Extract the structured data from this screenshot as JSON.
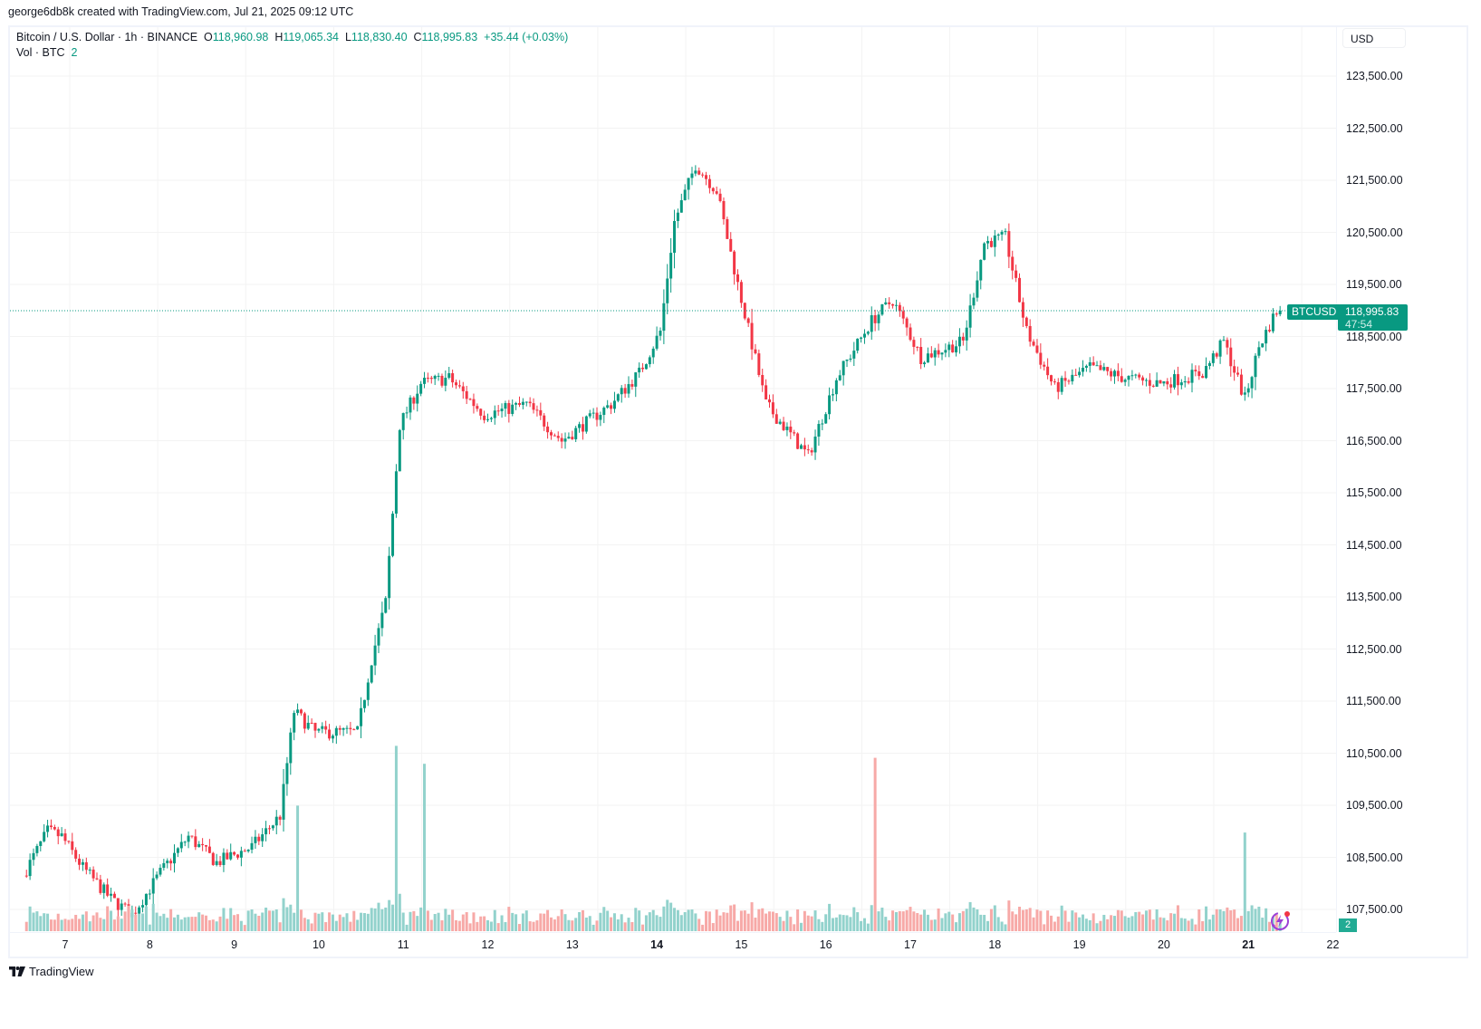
{
  "credit": "george6db8k created with TradingView.com, Jul 21, 2025 09:12 UTC",
  "legend": {
    "symbol_desc": "Bitcoin / U.S. Dollar · 1h · BINANCE",
    "o_label": "O",
    "o_value": "118,960.98",
    "h_label": "H",
    "h_value": "119,065.34",
    "l_label": "L",
    "l_value": "118,830.40",
    "c_label": "C",
    "c_value": "118,995.83",
    "change": "+35.44 (+0.03%)",
    "vol_label": "Vol · BTC",
    "vol_value": "2"
  },
  "price_axis": {
    "currency_button": "USD",
    "ticks": [
      "123,500.00",
      "122,500.00",
      "121,500.00",
      "120,500.00",
      "119,500.00",
      "118,500.00",
      "117,500.00",
      "116,500.00",
      "115,500.00",
      "114,500.00",
      "113,500.00",
      "112,500.00",
      "111,500.00",
      "110,500.00",
      "109,500.00",
      "108,500.00",
      "107,500.00"
    ],
    "symbol_tag": "BTCUSD",
    "last_price": "118,995.83",
    "countdown": "47:54",
    "volume_tag": "2"
  },
  "time_axis": {
    "ticks": [
      {
        "label": "7",
        "bold": false
      },
      {
        "label": "8",
        "bold": false
      },
      {
        "label": "9",
        "bold": false
      },
      {
        "label": "10",
        "bold": false
      },
      {
        "label": "11",
        "bold": false
      },
      {
        "label": "12",
        "bold": false
      },
      {
        "label": "13",
        "bold": false
      },
      {
        "label": "14",
        "bold": true
      },
      {
        "label": "15",
        "bold": false
      },
      {
        "label": "16",
        "bold": false
      },
      {
        "label": "17",
        "bold": false
      },
      {
        "label": "18",
        "bold": false
      },
      {
        "label": "19",
        "bold": false
      },
      {
        "label": "20",
        "bold": false
      },
      {
        "label": "21",
        "bold": true
      },
      {
        "label": "22",
        "bold": false
      }
    ]
  },
  "branding": {
    "logo_text": "TradingView"
  },
  "colors": {
    "up": "#089981",
    "down": "#f23645",
    "vol_up": "#92d2cc",
    "vol_down": "#f7a9a7",
    "grid": "#f3f3f3",
    "last_price_line": "#089981"
  },
  "chart_data": {
    "type": "candlestick",
    "title": "Bitcoin / U.S. Dollar · 1h · BINANCE",
    "xlabel": "",
    "ylabel": "USD",
    "x_ticks": [
      "7",
      "8",
      "9",
      "10",
      "11",
      "12",
      "13",
      "14",
      "15",
      "16",
      "17",
      "18",
      "19",
      "20",
      "21",
      "22"
    ],
    "ylim": [
      107000,
      124000
    ],
    "y_ticks": [
      107500,
      108500,
      109500,
      110500,
      111500,
      112500,
      113500,
      114500,
      115500,
      116500,
      117500,
      118500,
      119500,
      120500,
      121500,
      122500,
      123500
    ],
    "last": {
      "open": 118960.98,
      "high": 119065.34,
      "low": 118830.4,
      "close": 118995.83,
      "change": 35.44,
      "change_pct": 0.03,
      "volume": 2
    },
    "price_path_hourly_waypoints": [
      {
        "t": "Jul 6 13:00",
        "price": 108150
      },
      {
        "t": "Jul 6 20:00",
        "price": 109000
      },
      {
        "t": "Jul 7 00:00",
        "price": 108900
      },
      {
        "t": "Jul 7 06:00",
        "price": 108300
      },
      {
        "t": "Jul 7 14:00",
        "price": 107700
      },
      {
        "t": "Jul 7 20:00",
        "price": 107400
      },
      {
        "t": "Jul 8 04:00",
        "price": 108200
      },
      {
        "t": "Jul 8 12:00",
        "price": 108900
      },
      {
        "t": "Jul 8 20:00",
        "price": 108400
      },
      {
        "t": "Jul 9 06:00",
        "price": 108700
      },
      {
        "t": "Jul 9 14:00",
        "price": 109300
      },
      {
        "t": "Jul 9 18:00",
        "price": 111300
      },
      {
        "t": "Jul 10 00:00",
        "price": 110900
      },
      {
        "t": "Jul 10 12:00",
        "price": 110900
      },
      {
        "t": "Jul 10 16:00",
        "price": 112300
      },
      {
        "t": "Jul 10 20:00",
        "price": 113400
      },
      {
        "t": "Jul 11 00:00",
        "price": 116800
      },
      {
        "t": "Jul 11 06:00",
        "price": 117600
      },
      {
        "t": "Jul 11 14:00",
        "price": 117700
      },
      {
        "t": "Jul 12 00:00",
        "price": 117000
      },
      {
        "t": "Jul 12 12:00",
        "price": 117200
      },
      {
        "t": "Jul 12 22:00",
        "price": 116500
      },
      {
        "t": "Jul 13 12:00",
        "price": 117200
      },
      {
        "t": "Jul 13 20:00",
        "price": 117800
      },
      {
        "t": "Jul 14 02:00",
        "price": 118600
      },
      {
        "t": "Jul 14 06:00",
        "price": 120700
      },
      {
        "t": "Jul 14 12:00",
        "price": 121800
      },
      {
        "t": "Jul 14 18:00",
        "price": 121300
      },
      {
        "t": "Jul 15 00:00",
        "price": 119500
      },
      {
        "t": "Jul 15 08:00",
        "price": 117200
      },
      {
        "t": "Jul 15 14:00",
        "price": 116700
      },
      {
        "t": "Jul 15 20:00",
        "price": 116200
      },
      {
        "t": "Jul 16 04:00",
        "price": 117700
      },
      {
        "t": "Jul 16 14:00",
        "price": 118800
      },
      {
        "t": "Jul 16 20:00",
        "price": 119200
      },
      {
        "t": "Jul 17 04:00",
        "price": 118100
      },
      {
        "t": "Jul 17 16:00",
        "price": 118400
      },
      {
        "t": "Jul 17 22:00",
        "price": 120300
      },
      {
        "t": "Jul 18 04:00",
        "price": 120400
      },
      {
        "t": "Jul 18 10:00",
        "price": 118600
      },
      {
        "t": "Jul 18 18:00",
        "price": 117500
      },
      {
        "t": "Jul 19 04:00",
        "price": 117900
      },
      {
        "t": "Jul 19 14:00",
        "price": 117700
      },
      {
        "t": "Jul 20 00:00",
        "price": 117600
      },
      {
        "t": "Jul 20 12:00",
        "price": 117800
      },
      {
        "t": "Jul 20 18:00",
        "price": 118400
      },
      {
        "t": "Jul 21 00:00",
        "price": 117300
      },
      {
        "t": "Jul 21 04:00",
        "price": 118300
      },
      {
        "t": "Jul 21 09:00",
        "price": 118996
      }
    ],
    "volume_peaks": [
      {
        "t": "Jul 9 ~18:00",
        "volume_rel": 0.42,
        "dir": "down"
      },
      {
        "t": "Jul 10 ~22:00",
        "volume_rel": 0.62,
        "dir": "up"
      },
      {
        "t": "Jul 11 ~06:00",
        "volume_rel": 0.56,
        "dir": "up"
      },
      {
        "t": "Jul 16 ~14:00",
        "volume_rel": 0.58,
        "dir": "down"
      },
      {
        "t": "Jul 20 ~23:00",
        "volume_rel": 0.33,
        "dir": "down"
      }
    ]
  }
}
